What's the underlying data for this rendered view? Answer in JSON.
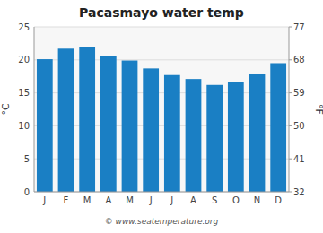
{
  "chart_data": {
    "type": "bar",
    "title": "Pacasmayo water temp",
    "categories": [
      "J",
      "F",
      "M",
      "A",
      "M",
      "J",
      "J",
      "A",
      "S",
      "O",
      "N",
      "D"
    ],
    "values": [
      20.1,
      21.7,
      21.9,
      20.6,
      19.9,
      18.7,
      17.7,
      17.1,
      16.2,
      16.7,
      17.8,
      19.5
    ],
    "color": "#1a7fc4",
    "ylim": [
      0,
      25
    ],
    "yticks": [
      0,
      5,
      10,
      15,
      20,
      25
    ],
    "y2lim": [
      32,
      77
    ],
    "y2ticks": [
      32,
      41,
      50,
      59,
      68,
      77
    ],
    "ylabel": "°C",
    "y2label": "°F",
    "grid": true,
    "annotations": [
      "© www.seatemperature.org"
    ]
  }
}
